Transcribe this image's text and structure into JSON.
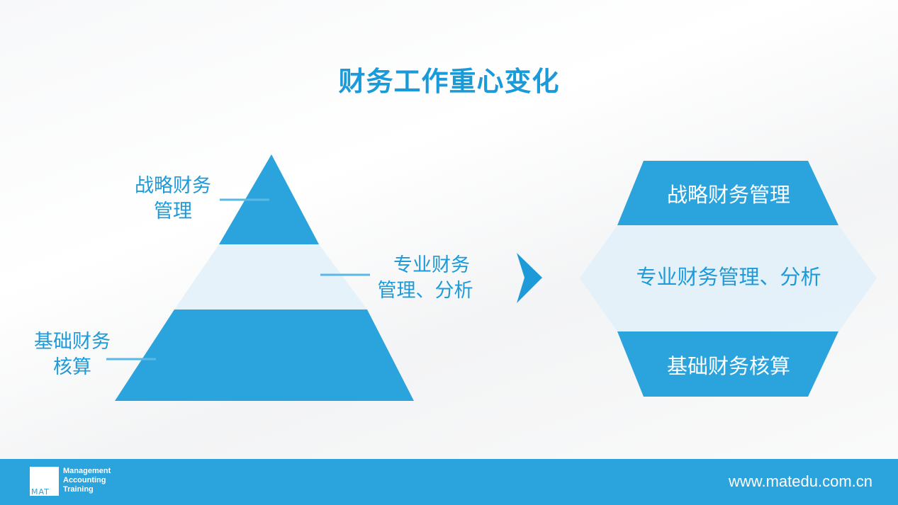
{
  "title": "财务工作重心变化",
  "colors": {
    "accent": "#2ba3dc",
    "title": "#1a9ad9",
    "light_band": "#e3f1f9"
  },
  "pyramid": {
    "top_label_line1": "战略财务",
    "top_label_line2": "管理",
    "middle_label_line1": "专业财务",
    "middle_label_line2": "管理、分析",
    "bottom_label_line1": "基础财务",
    "bottom_label_line2": "核算"
  },
  "arrow_icon": "triangle-right-icon",
  "hexagon": {
    "top": "战略财务管理",
    "middle": "专业财务管理、分析",
    "bottom": "基础财务核算"
  },
  "footer": {
    "logo_mark": "MAT",
    "logo_line1": "Management",
    "logo_line2": "Accounting",
    "logo_line3": "Training",
    "url": "www.matedu.com.cn"
  }
}
